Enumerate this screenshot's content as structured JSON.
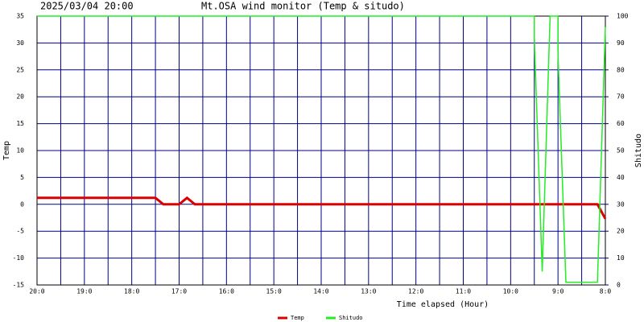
{
  "chart_data": {
    "type": "line",
    "title": "Mt.OSA wind monitor (Temp & situdo)",
    "timestamp": "2025/03/04 20:00",
    "x_label": "Time elapsed (Hour)",
    "y_label": "Temp",
    "y2_label": "Shitudo",
    "xlim": [
      20,
      8
    ],
    "xticks": [
      {
        "value": 20,
        "label": "20:0"
      },
      {
        "value": 19,
        "label": "19:0"
      },
      {
        "value": 18,
        "label": "18:0"
      },
      {
        "value": 17,
        "label": "17:0"
      },
      {
        "value": 16,
        "label": "16:0"
      },
      {
        "value": 15,
        "label": "15:0"
      },
      {
        "value": 14,
        "label": "14:0"
      },
      {
        "value": 13,
        "label": "13:0"
      },
      {
        "value": 12,
        "label": "12:0"
      },
      {
        "value": 11,
        "label": "11:0"
      },
      {
        "value": 10,
        "label": "10:0"
      },
      {
        "value": 9,
        "label": "9:0"
      },
      {
        "value": 8,
        "label": "8:0"
      }
    ],
    "ylim": [
      -15,
      35
    ],
    "yticks": [
      -15,
      -10,
      -5,
      0,
      5,
      10,
      15,
      20,
      25,
      30,
      35
    ],
    "y2lim": [
      0,
      100
    ],
    "y2ticks": [
      0,
      10,
      20,
      30,
      40,
      50,
      60,
      70,
      80,
      90,
      100
    ],
    "grid": true,
    "grid_color": "#000080",
    "series": [
      {
        "name": "Temp",
        "color": "#dd0000",
        "axis": "y",
        "x": [
          20,
          17.5,
          17.333,
          17,
          16.833,
          16.667,
          8.167,
          8
        ],
        "values": [
          1.2,
          1.2,
          0,
          0,
          1.2,
          0,
          0,
          -2.7
        ]
      },
      {
        "name": "Shitudo",
        "color": "#22ee22",
        "axis": "y2",
        "x": [
          20,
          9.5,
          9.5,
          9.333,
          9.167,
          9,
          9,
          8.833,
          8.167,
          8
        ],
        "values": [
          100,
          100,
          92,
          5,
          100,
          100,
          86,
          1,
          1,
          96
        ]
      }
    ]
  }
}
